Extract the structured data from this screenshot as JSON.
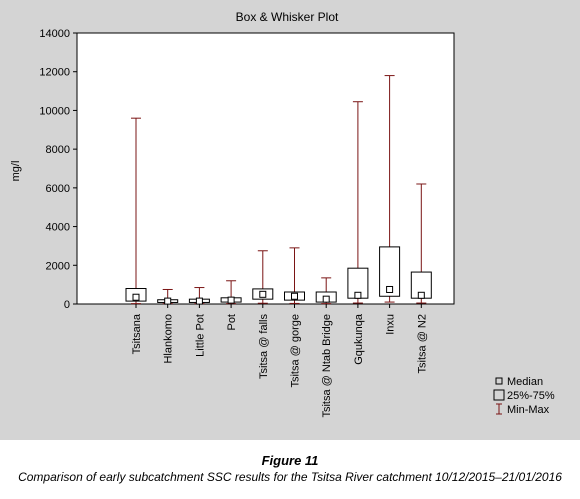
{
  "chart_data": {
    "type": "box",
    "title": "Box & Whisker Plot",
    "ylabel": "mg/l",
    "xlabel": "",
    "ylim": [
      0,
      14000
    ],
    "yticks": [
      0,
      2000,
      4000,
      6000,
      8000,
      10000,
      12000,
      14000
    ],
    "grid": false,
    "legend_position": "bottom-right",
    "legend": [
      "Median",
      "25%-75%",
      "Min-Max"
    ],
    "colors": {
      "frame": "#d4d4d4",
      "plot": "#ffffff",
      "box": "#000000",
      "whisker": "#7a1414"
    },
    "categories": [
      "Tsitsana",
      "Hlankomo",
      "Little Pot",
      "Pot",
      "Tsitsa @ falls",
      "Tsitsa @ gorge",
      "Tsitsa @ Ntab Bridge",
      "Gqukunqa",
      "Inxu",
      "Tsitsa @ N2"
    ],
    "boxes": [
      {
        "min": 20,
        "q1": 150,
        "median": 350,
        "q3": 800,
        "max": 9600
      },
      {
        "min": 20,
        "q1": 80,
        "median": 150,
        "q3": 220,
        "max": 750
      },
      {
        "min": 20,
        "q1": 80,
        "median": 150,
        "q3": 250,
        "max": 850
      },
      {
        "min": 20,
        "q1": 100,
        "median": 200,
        "q3": 320,
        "max": 1200
      },
      {
        "min": 40,
        "q1": 250,
        "median": 500,
        "q3": 780,
        "max": 2750
      },
      {
        "min": 30,
        "q1": 200,
        "median": 400,
        "q3": 620,
        "max": 2900
      },
      {
        "min": 20,
        "q1": 100,
        "median": 250,
        "q3": 620,
        "max": 1350
      },
      {
        "min": 50,
        "q1": 300,
        "median": 450,
        "q3": 1850,
        "max": 10450
      },
      {
        "min": 100,
        "q1": 400,
        "median": 750,
        "q3": 2950,
        "max": 11800
      },
      {
        "min": 50,
        "q1": 300,
        "median": 450,
        "q3": 1650,
        "max": 6200
      }
    ]
  },
  "figure": {
    "label": "Figure 11",
    "caption": "Comparison of early subcatchment SSC results for the Tsitsa River catchment 10/12/2015–21/01/2016"
  }
}
